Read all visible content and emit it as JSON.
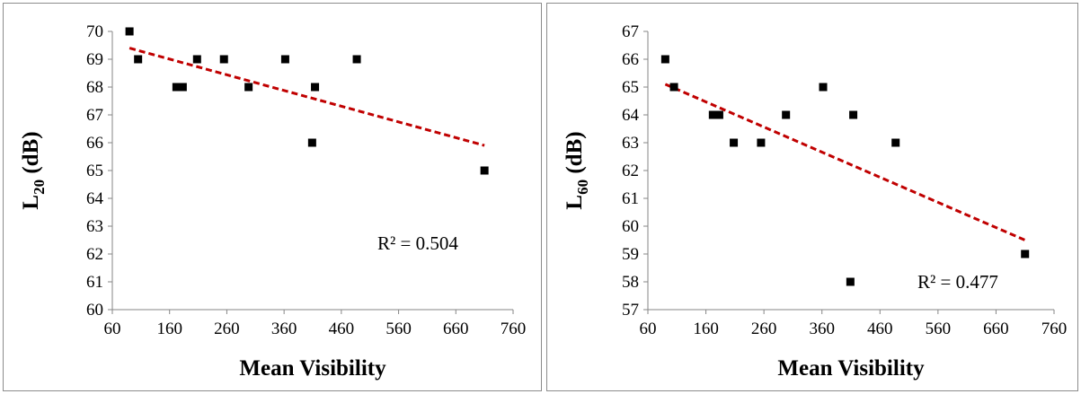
{
  "chart_data": [
    {
      "type": "scatter",
      "xlabel": "Mean Visibility",
      "ylabel": {
        "main": "L",
        "sub": "20",
        "unit": " (dB)"
      },
      "xlim": [
        60,
        760
      ],
      "ylim": [
        60,
        70
      ],
      "xticks": [
        "60",
        "160",
        "260",
        "360",
        "460",
        "560",
        "660",
        "760"
      ],
      "yticks": [
        "60",
        "61",
        "62",
        "63",
        "64",
        "65",
        "66",
        "67",
        "68",
        "69",
        "70"
      ],
      "points": [
        {
          "x": 90,
          "y": 70
        },
        {
          "x": 105,
          "y": 69
        },
        {
          "x": 172,
          "y": 68
        },
        {
          "x": 183,
          "y": 68
        },
        {
          "x": 208,
          "y": 69
        },
        {
          "x": 255,
          "y": 69
        },
        {
          "x": 298,
          "y": 68
        },
        {
          "x": 362,
          "y": 69
        },
        {
          "x": 409,
          "y": 66
        },
        {
          "x": 414,
          "y": 68
        },
        {
          "x": 487,
          "y": 69
        },
        {
          "x": 710,
          "y": 65
        }
      ],
      "trendline": {
        "x": [
          90,
          710
        ],
        "y": [
          69.4,
          65.9
        ]
      },
      "annotation": "R² = 0.504",
      "grid": false,
      "marker_color": "#000000",
      "trend_color": "#c00000"
    },
    {
      "type": "scatter",
      "xlabel": "Mean Visibility",
      "ylabel": {
        "main": "L",
        "sub": "60",
        "unit": " (dB)"
      },
      "xlim": [
        60,
        760
      ],
      "ylim": [
        57,
        67
      ],
      "xticks": [
        "60",
        "160",
        "260",
        "360",
        "460",
        "560",
        "660",
        "760"
      ],
      "yticks": [
        "57",
        "58",
        "59",
        "60",
        "61",
        "62",
        "63",
        "64",
        "65",
        "66",
        "67"
      ],
      "points": [
        {
          "x": 90,
          "y": 66
        },
        {
          "x": 105,
          "y": 65
        },
        {
          "x": 172,
          "y": 64
        },
        {
          "x": 183,
          "y": 64
        },
        {
          "x": 208,
          "y": 63
        },
        {
          "x": 255,
          "y": 63
        },
        {
          "x": 298,
          "y": 64
        },
        {
          "x": 362,
          "y": 65
        },
        {
          "x": 409,
          "y": 58
        },
        {
          "x": 414,
          "y": 64
        },
        {
          "x": 487,
          "y": 63
        },
        {
          "x": 710,
          "y": 59
        }
      ],
      "trendline": {
        "x": [
          90,
          710
        ],
        "y": [
          65.1,
          59.5
        ]
      },
      "annotation": "R² = 0.477",
      "grid": false,
      "marker_color": "#000000",
      "trend_color": "#c00000"
    }
  ]
}
